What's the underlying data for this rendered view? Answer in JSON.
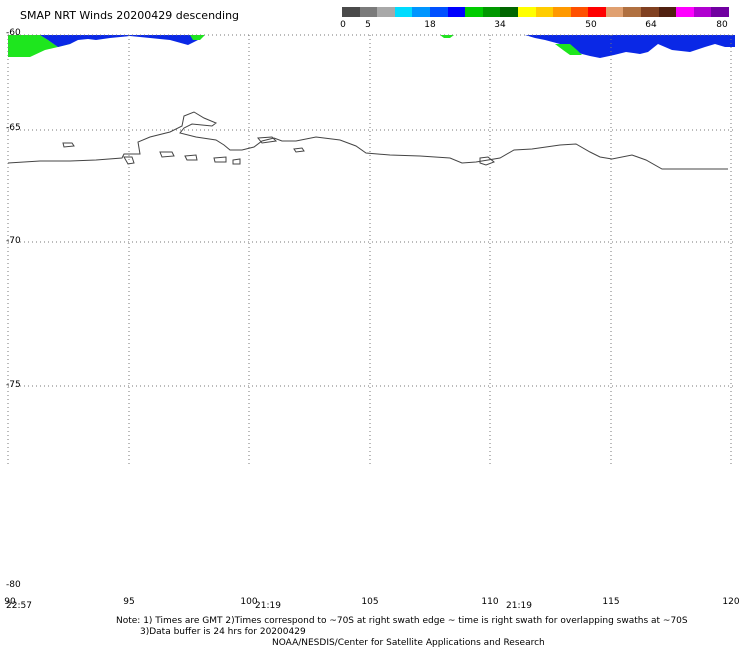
{
  "header": {
    "title": "SMAP NRT Winds  20200429 descending"
  },
  "colorbar": {
    "segments": [
      {
        "color": "#4a4a4a"
      },
      {
        "color": "#7a7a7a"
      },
      {
        "color": "#a8a8a8"
      },
      {
        "color": "#00dcff"
      },
      {
        "color": "#0096ff"
      },
      {
        "color": "#0050ff"
      },
      {
        "color": "#0000ff"
      },
      {
        "color": "#00cc00"
      },
      {
        "color": "#009900"
      },
      {
        "color": "#006600"
      },
      {
        "color": "#ffff00"
      },
      {
        "color": "#ffcc00"
      },
      {
        "color": "#ff9900"
      },
      {
        "color": "#ff5000"
      },
      {
        "color": "#ff0000"
      },
      {
        "color": "#e0a070"
      },
      {
        "color": "#b07040"
      },
      {
        "color": "#804020"
      },
      {
        "color": "#502010"
      },
      {
        "color": "#ff00ff"
      },
      {
        "color": "#b000d0"
      },
      {
        "color": "#7000a0"
      }
    ],
    "ticks": [
      {
        "label": "0"
      },
      {
        "label": "5"
      },
      {
        "label": "18"
      },
      {
        "label": "34"
      },
      {
        "label": "50"
      },
      {
        "label": "64"
      },
      {
        "label": "80"
      }
    ]
  },
  "map": {
    "lat_labels": [
      "-60",
      "-65",
      "-70",
      "-75",
      "-80"
    ],
    "lon_labels": [
      "90",
      "95",
      "100",
      "105",
      "110",
      "115",
      "120"
    ],
    "swath_times": [
      "22:57",
      "21:19",
      "21:19"
    ],
    "colors": {
      "blue": "#0a28e6",
      "green": "#1ee61e",
      "coast": "#444444",
      "grid": "#777777"
    }
  },
  "footer": {
    "note_line1": "Note: 1) Times are GMT 2)Times correspond to ~70S at right swath edge ~ time is right swath for overlapping swaths at ~70S",
    "note_line2": "3)Data buffer is 24 hrs for 20200429",
    "credit": "NOAA/NESDIS/Center for Satellite Applications and Research"
  }
}
